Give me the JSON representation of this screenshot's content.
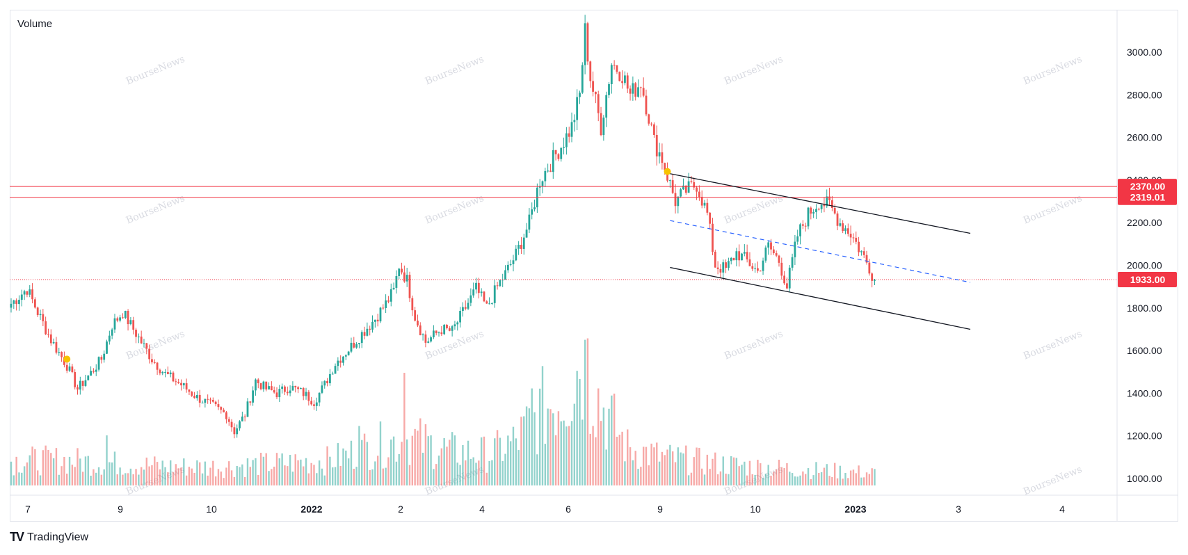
{
  "indicator_label": "Volume",
  "watermark": "BourseNews",
  "footer": {
    "logo": "TV",
    "brand": "TradingView"
  },
  "colors": {
    "up": "#26a69a",
    "down": "#ef5350",
    "hline": "#f23645",
    "channel": "#131722",
    "midline": "#2962ff",
    "marker": "#f7c200"
  },
  "chart_data": {
    "type": "candlestick",
    "ylim": [
      930,
      3220
    ],
    "price_ticks": [
      "3000.00",
      "2800.00",
      "2600.00",
      "2400.00",
      "2200.00",
      "2000.00",
      "1800.00",
      "1600.00",
      "1400.00",
      "1200.00",
      "1000.00"
    ],
    "time_labels": [
      {
        "label": "7",
        "bold": false
      },
      {
        "label": "9",
        "bold": false
      },
      {
        "label": "10",
        "bold": false
      },
      {
        "label": "2022",
        "bold": true
      },
      {
        "label": "2",
        "bold": false
      },
      {
        "label": "4",
        "bold": false
      },
      {
        "label": "6",
        "bold": false
      },
      {
        "label": "9",
        "bold": false
      },
      {
        "label": "10",
        "bold": false
      },
      {
        "label": "2023",
        "bold": true
      },
      {
        "label": "3",
        "bold": false
      },
      {
        "label": "4",
        "bold": false
      }
    ],
    "price_labels": [
      {
        "price": 2370,
        "text": "2370.00",
        "style": "solid"
      },
      {
        "price": 2319.01,
        "text": "2319.01",
        "style": "solid"
      },
      {
        "price": 1933,
        "text": "1933.00",
        "style": "dotted"
      }
    ],
    "close_anchors": [
      [
        0,
        1820
      ],
      [
        6,
        1890
      ],
      [
        10,
        1780
      ],
      [
        15,
        1650
      ],
      [
        21,
        1530
      ],
      [
        25,
        1420
      ],
      [
        29,
        1480
      ],
      [
        34,
        1560
      ],
      [
        38,
        1720
      ],
      [
        42,
        1780
      ],
      [
        45,
        1720
      ],
      [
        49,
        1640
      ],
      [
        53,
        1560
      ],
      [
        58,
        1490
      ],
      [
        64,
        1440
      ],
      [
        70,
        1380
      ],
      [
        76,
        1340
      ],
      [
        81,
        1300
      ],
      [
        84,
        1220
      ],
      [
        88,
        1300
      ],
      [
        92,
        1460
      ],
      [
        96,
        1420
      ],
      [
        100,
        1400
      ],
      [
        105,
        1430
      ],
      [
        110,
        1400
      ],
      [
        114,
        1360
      ],
      [
        118,
        1440
      ],
      [
        122,
        1540
      ],
      [
        128,
        1620
      ],
      [
        132,
        1680
      ],
      [
        137,
        1750
      ],
      [
        141,
        1820
      ],
      [
        144,
        1880
      ],
      [
        146,
        2000
      ],
      [
        149,
        1930
      ],
      [
        152,
        1760
      ],
      [
        156,
        1640
      ],
      [
        162,
        1700
      ],
      [
        166,
        1690
      ],
      [
        170,
        1780
      ],
      [
        175,
        1890
      ],
      [
        179,
        1800
      ],
      [
        183,
        1900
      ],
      [
        186,
        1960
      ],
      [
        190,
        2050
      ],
      [
        195,
        2200
      ],
      [
        199,
        2400
      ],
      [
        203,
        2480
      ],
      [
        207,
        2560
      ],
      [
        211,
        2650
      ],
      [
        214,
        2800
      ],
      [
        216,
        3100
      ],
      [
        218,
        2880
      ],
      [
        222,
        2650
      ],
      [
        226,
        2950
      ],
      [
        230,
        2900
      ],
      [
        233,
        2800
      ],
      [
        237,
        2860
      ],
      [
        240,
        2700
      ],
      [
        242,
        2580
      ],
      [
        245,
        2500
      ],
      [
        247,
        2420
      ],
      [
        250,
        2300
      ],
      [
        254,
        2350
      ],
      [
        258,
        2380
      ],
      [
        262,
        2240
      ],
      [
        265,
        2000
      ],
      [
        269,
        1980
      ],
      [
        273,
        2060
      ],
      [
        277,
        2020
      ],
      [
        281,
        1970
      ],
      [
        285,
        2090
      ],
      [
        289,
        2020
      ],
      [
        292,
        1900
      ],
      [
        296,
        2140
      ],
      [
        300,
        2240
      ],
      [
        304,
        2300
      ],
      [
        308,
        2280
      ],
      [
        312,
        2200
      ],
      [
        316,
        2150
      ],
      [
        320,
        2060
      ],
      [
        323,
        1990
      ],
      [
        325,
        1933
      ]
    ],
    "volume_anchors": [
      [
        0,
        40
      ],
      [
        20,
        40
      ],
      [
        40,
        35
      ],
      [
        60,
        30
      ],
      [
        80,
        30
      ],
      [
        100,
        35
      ],
      [
        120,
        40
      ],
      [
        135,
        60
      ],
      [
        150,
        75
      ],
      [
        165,
        55
      ],
      [
        180,
        50
      ],
      [
        190,
        70
      ],
      [
        200,
        120
      ],
      [
        208,
        150
      ],
      [
        215,
        200
      ],
      [
        222,
        130
      ],
      [
        232,
        60
      ],
      [
        245,
        45
      ],
      [
        265,
        35
      ],
      [
        280,
        30
      ],
      [
        300,
        25
      ],
      [
        325,
        20
      ]
    ],
    "volume_spikes": [
      [
        36,
        80
      ],
      [
        131,
        95
      ],
      [
        148,
        180
      ],
      [
        196,
        155
      ],
      [
        217,
        235
      ],
      [
        214,
        170
      ]
    ],
    "markers": [
      [
        21,
        1560
      ],
      [
        247,
        2440
      ]
    ],
    "channel": {
      "upper": [
        [
          248,
          2430
        ],
        [
          361,
          2150
        ]
      ],
      "lower": [
        [
          248,
          1990
        ],
        [
          361,
          1700
        ]
      ]
    },
    "midline": [
      [
        248,
        2210
      ],
      [
        361,
        1920
      ]
    ],
    "bars_total": 326
  }
}
